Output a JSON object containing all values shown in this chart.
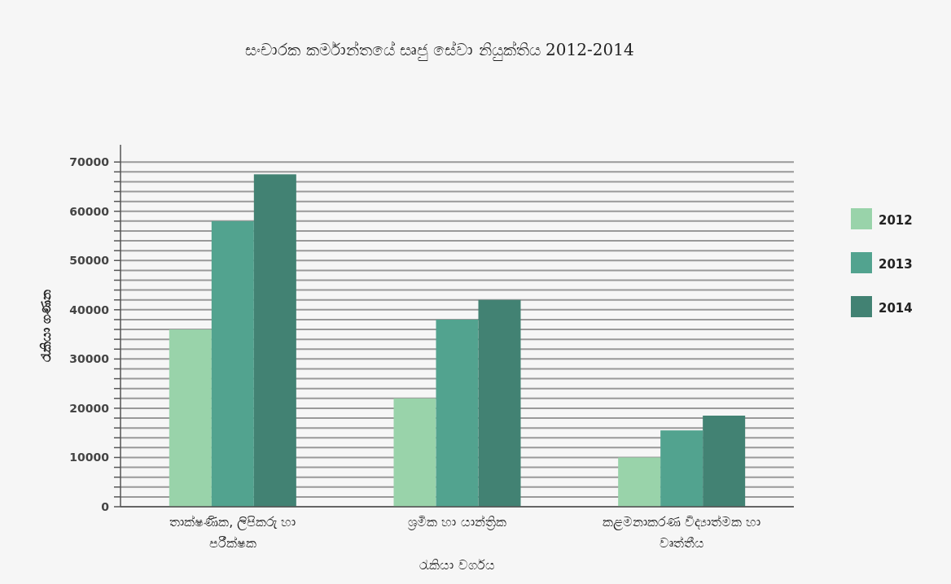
{
  "chart_data": {
    "type": "bar",
    "title": "සංචාරක කර්මාන්තයේ සෘජු සේවා නියුක්තිය 2012-2014",
    "xlabel": "රැකියා වර්ගය",
    "ylabel": "රැකියා ගණන",
    "categories": [
      "තාක්ෂණික, ලිපිකරු හා පරීක්ෂක",
      "ශ්‍රමික හා යාන්ත්‍රික",
      "කළමනාකරණ විද්‍යාත්මක හා වෘත්තීය"
    ],
    "series": [
      {
        "name": "2012",
        "color": "#99d3aa",
        "values": [
          36000,
          22000,
          10000
        ]
      },
      {
        "name": "2013",
        "color": "#52a38f",
        "values": [
          58000,
          38000,
          15500
        ]
      },
      {
        "name": "2014",
        "color": "#428273",
        "values": [
          67500,
          42000,
          18500
        ]
      }
    ],
    "ylim": [
      0,
      73500
    ],
    "yticks": [
      0,
      {
        "value": 2000,
        "label": null
      },
      {
        "value": 4000,
        "label": null
      },
      {
        "value": 6000,
        "label": null
      },
      {
        "value": 8000,
        "label": null
      },
      10000,
      {
        "value": 12000,
        "label": null
      },
      {
        "value": 14000,
        "label": null
      },
      {
        "value": 16000,
        "label": null
      },
      {
        "value": 18000,
        "label": null
      },
      20000,
      {
        "value": 22000,
        "label": null
      },
      {
        "value": 24000,
        "label": null
      },
      {
        "value": 26000,
        "label": null
      },
      {
        "value": 28000,
        "label": null
      },
      30000,
      {
        "value": 32000,
        "label": null
      },
      {
        "value": 34000,
        "label": null
      },
      {
        "value": 36000,
        "label": null
      },
      {
        "value": 38000,
        "label": null
      },
      40000,
      {
        "value": 42000,
        "label": null
      },
      {
        "value": 44000,
        "label": null
      },
      {
        "value": 46000,
        "label": null
      },
      {
        "value": 48000,
        "label": null
      },
      50000,
      {
        "value": 52000,
        "label": null
      },
      {
        "value": 54000,
        "label": null
      },
      {
        "value": 56000,
        "label": null
      },
      {
        "value": 58000,
        "label": null
      },
      60000,
      {
        "value": 62000,
        "label": null
      },
      {
        "value": 64000,
        "label": null
      },
      {
        "value": 66000,
        "label": null
      },
      {
        "value": 68000,
        "label": null
      },
      70000
    ],
    "grid": "y",
    "legend": "right"
  }
}
